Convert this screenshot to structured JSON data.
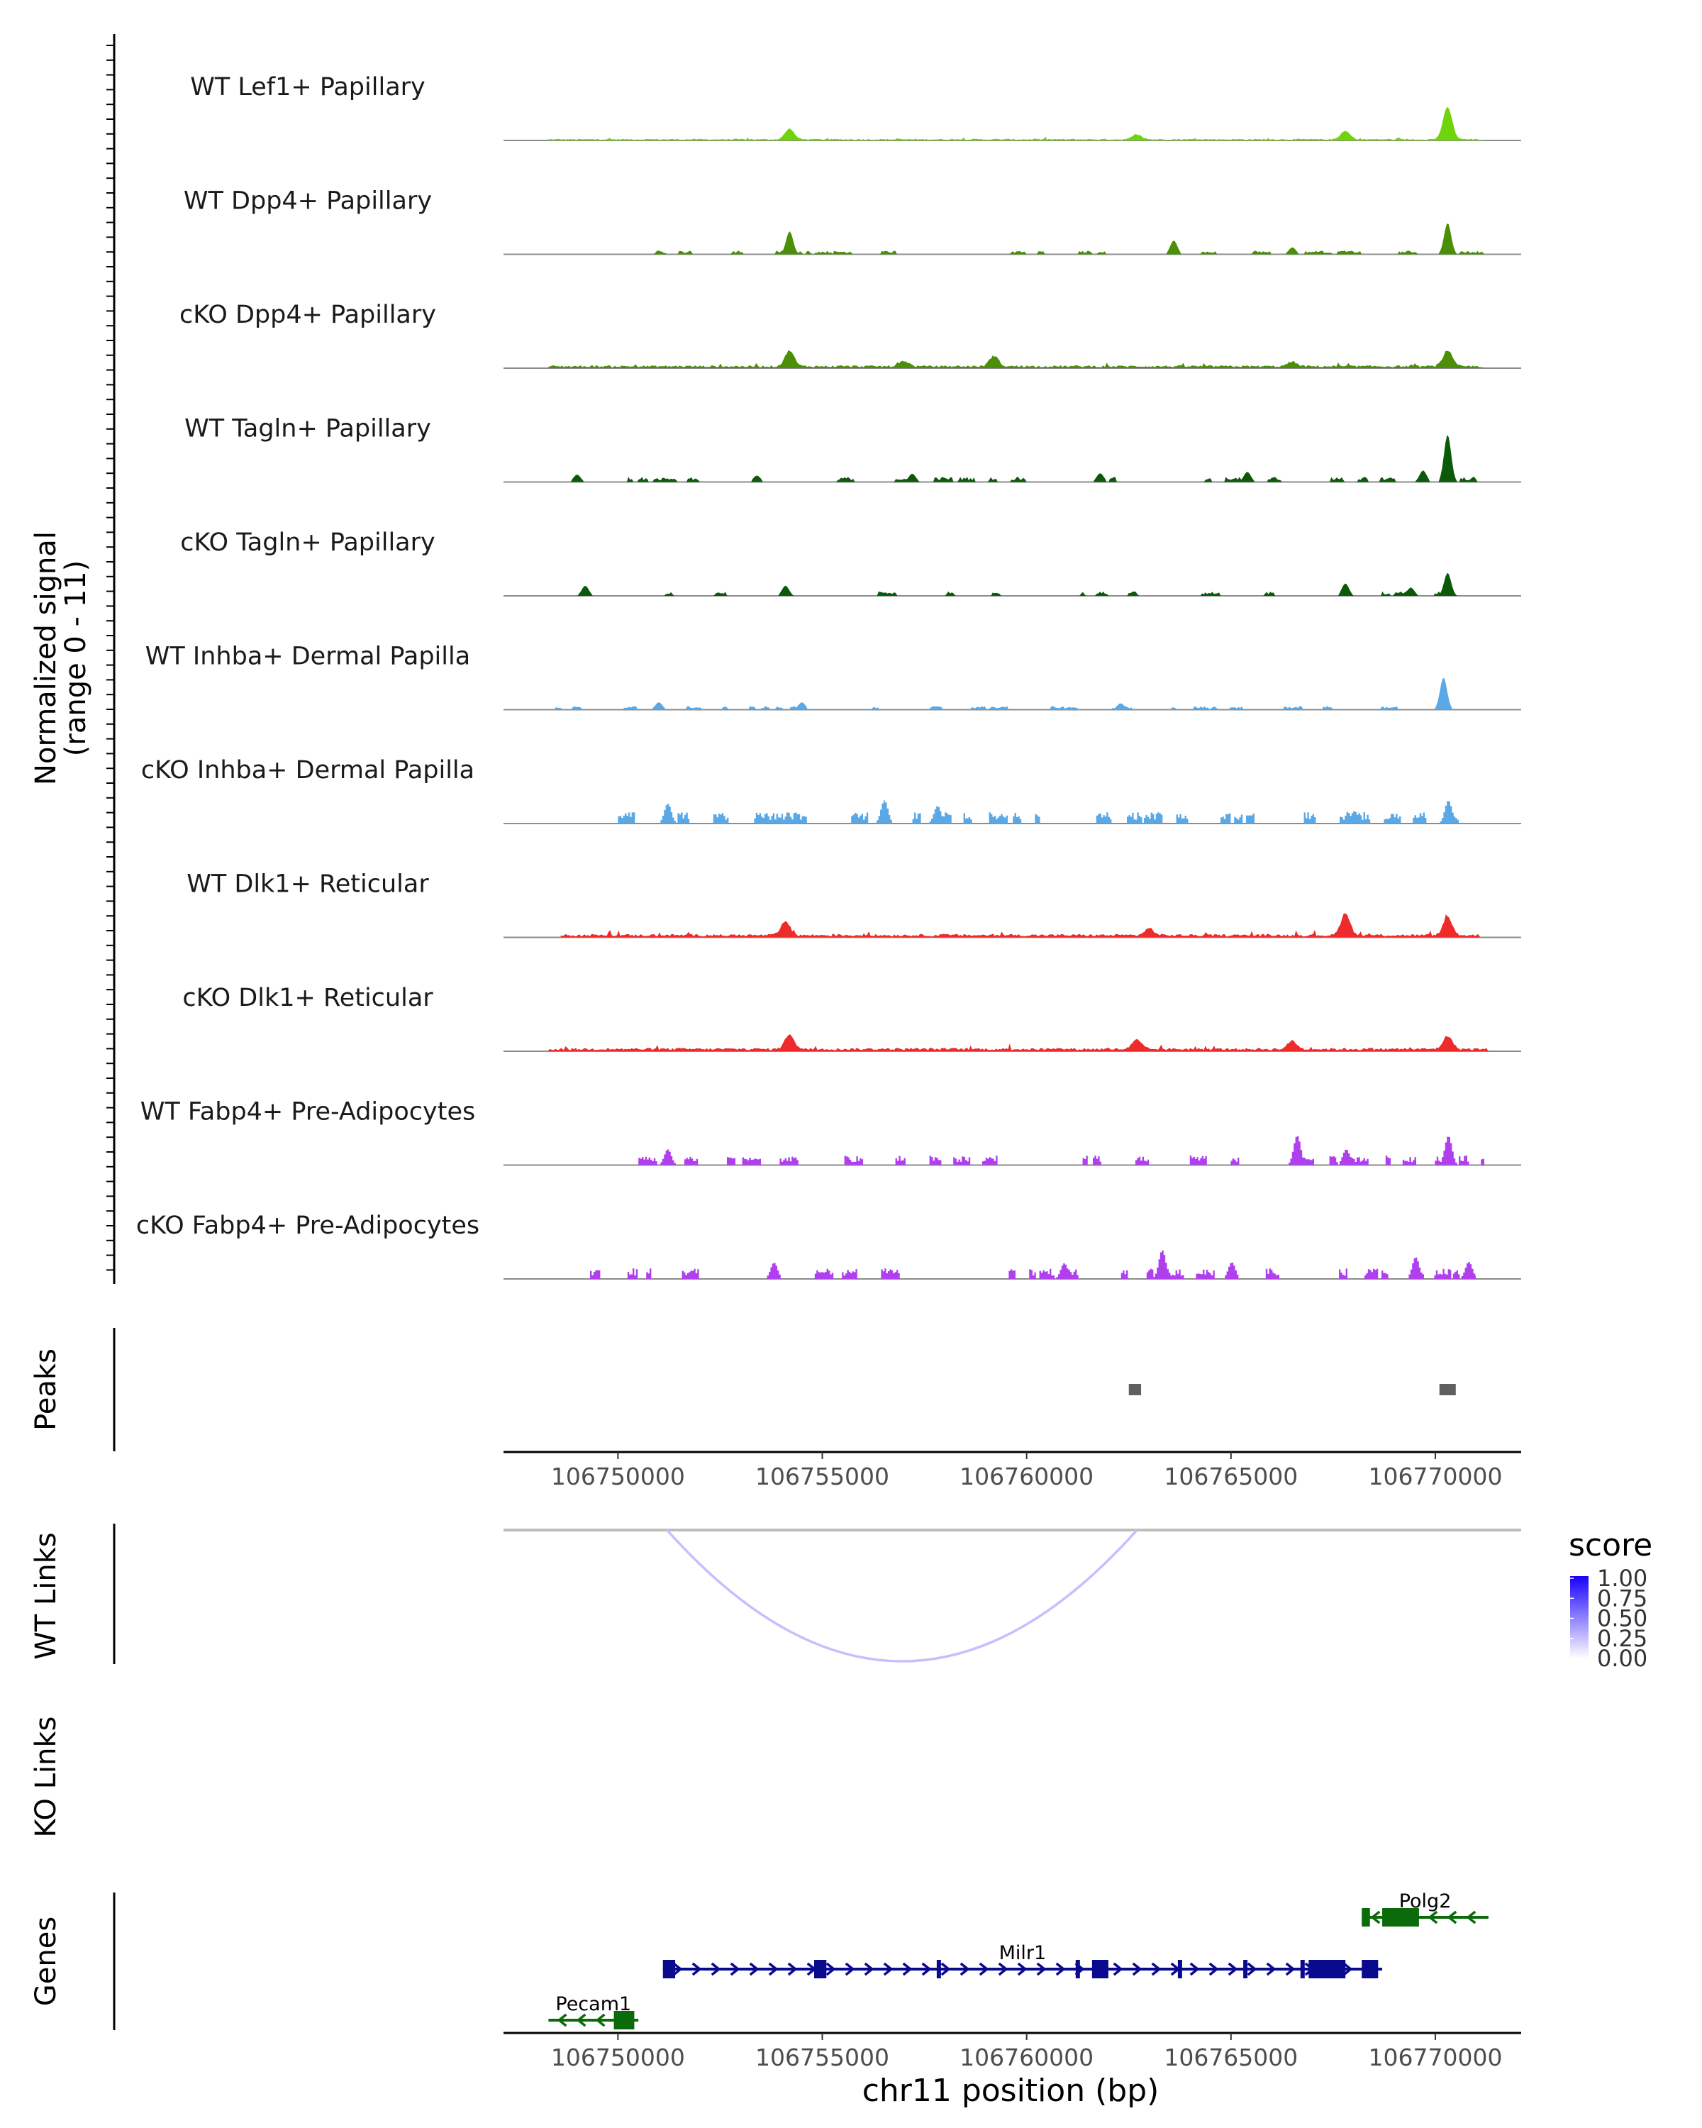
{
  "chart_data": {
    "type": "area",
    "title": "",
    "chromosome": "chr11",
    "xlabel": "chr11 position (bp)",
    "xlim": [
      106747200,
      106772100
    ],
    "xticks": [
      106750000,
      106755000,
      106760000,
      106765000,
      106770000
    ],
    "xtick_labels": [
      "106750000",
      "106755000",
      "106760000",
      "106765000",
      "106770000"
    ],
    "coverage": {
      "ylabel_line1": "Normalized signal",
      "ylabel_line2": "(range 0 - 11)",
      "ylim": [
        0,
        11
      ],
      "tracks": [
        {
          "name": "WT Lef1+ Papillary",
          "color": "#6fd40a",
          "style": "dense",
          "start": 106748300,
          "end": 106771200,
          "base": 0.3,
          "peaks": [
            [
              106754200,
              2.3
            ],
            [
              106762700,
              1.0
            ],
            [
              106767800,
              1.8
            ],
            [
              106770300,
              7.0
            ]
          ]
        },
        {
          "name": "WT Dpp4+ Papillary",
          "color": "#4a8f06",
          "style": "sparse",
          "start": 106750000,
          "end": 106771200,
          "base": 0.5,
          "peaks": [
            [
              106754200,
              5.0
            ],
            [
              106763600,
              3.0
            ],
            [
              106766500,
              1.5
            ],
            [
              106770300,
              6.8
            ]
          ]
        },
        {
          "name": "cKO Dpp4+ Papillary",
          "color": "#4a8f06",
          "style": "dense",
          "start": 106748300,
          "end": 106771200,
          "base": 0.5,
          "peaks": [
            [
              106754200,
              3.5
            ],
            [
              106757000,
              1.2
            ],
            [
              106759200,
              2.3
            ],
            [
              106766500,
              1.0
            ],
            [
              106770300,
              3.5
            ]
          ]
        },
        {
          "name": "WT Tagln+ Papillary",
          "color": "#0a5a0a",
          "style": "sparse",
          "start": 106748800,
          "end": 106771300,
          "base": 0.7,
          "peaks": [
            [
              106749000,
              1.6
            ],
            [
              106753400,
              1.4
            ],
            [
              106757200,
              1.8
            ],
            [
              106761800,
              1.9
            ],
            [
              106765400,
              2.2
            ],
            [
              106769700,
              2.5
            ],
            [
              106770300,
              10.3
            ]
          ]
        },
        {
          "name": "cKO Tagln+ Papillary",
          "color": "#0a5a0a",
          "style": "sparse",
          "start": 106748300,
          "end": 106771200,
          "base": 0.6,
          "peaks": [
            [
              106749200,
              2.2
            ],
            [
              106754100,
              2.2
            ],
            [
              106767800,
              2.7
            ],
            [
              106769400,
              1.8
            ],
            [
              106770300,
              5.0
            ]
          ]
        },
        {
          "name": "WT Inhba+ Dermal Papilla",
          "color": "#5aa8e6",
          "style": "sparse",
          "start": 106748400,
          "end": 106771200,
          "base": 0.5,
          "peaks": [
            [
              106751000,
              1.6
            ],
            [
              106754500,
              1.6
            ],
            [
              106762300,
              1.4
            ],
            [
              106770200,
              7.0
            ]
          ]
        },
        {
          "name": "cKO Inhba+ Dermal Papilla",
          "color": "#5aa8e6",
          "style": "blocky",
          "start": 106749500,
          "end": 106771100,
          "base": 1.2,
          "peaks": [
            [
              106751200,
              4.3
            ],
            [
              106756500,
              5.0
            ],
            [
              106757800,
              3.8
            ],
            [
              106768000,
              2.7
            ],
            [
              106770300,
              5.0
            ]
          ]
        },
        {
          "name": "WT Dlk1+ Reticular",
          "color": "#ee2a2a",
          "style": "dense",
          "start": 106748600,
          "end": 106771100,
          "base": 0.6,
          "peaks": [
            [
              106754100,
              3.0
            ],
            [
              106763000,
              1.5
            ],
            [
              106767800,
              4.9
            ],
            [
              106770300,
              3.9
            ]
          ]
        },
        {
          "name": "cKO Dlk1+ Reticular",
          "color": "#ee2a2a",
          "style": "dense",
          "start": 106748300,
          "end": 106771300,
          "base": 0.6,
          "peaks": [
            [
              106754200,
              3.3
            ],
            [
              106762700,
              2.0
            ],
            [
              106766500,
              1.8
            ],
            [
              106770300,
              2.9
            ]
          ]
        },
        {
          "name": "WT Fabp4+ Pre-Adipocytes",
          "color": "#b040ee",
          "style": "blocky",
          "start": 106750500,
          "end": 106771200,
          "base": 1.0,
          "peaks": [
            [
              106751200,
              3.4
            ],
            [
              106766600,
              6.4
            ],
            [
              106767800,
              3.4
            ],
            [
              106770300,
              6.3
            ]
          ]
        },
        {
          "name": "cKO Fabp4+ Pre-Adipocytes",
          "color": "#b040ee",
          "style": "blocky",
          "start": 106748400,
          "end": 106771000,
          "base": 1.1,
          "peaks": [
            [
              106753800,
              3.5
            ],
            [
              106760900,
              3.4
            ],
            [
              106763300,
              6.2
            ],
            [
              106765000,
              3.6
            ],
            [
              106769500,
              4.7
            ],
            [
              106770800,
              3.7
            ]
          ]
        }
      ]
    },
    "peaks_track": {
      "label": "Peaks",
      "intervals": [
        [
          106762500,
          106762800
        ],
        [
          106770100,
          106770500
        ]
      ]
    },
    "links": {
      "wt_label": "WT Links",
      "ko_label": "KO Links",
      "wt": [
        {
          "start": 106751200,
          "end": 106762700,
          "score": 0.25
        }
      ],
      "ko": []
    },
    "legend": {
      "title": "score",
      "placement": "right",
      "scale": [
        0,
        1
      ],
      "color_low": "#ffffff",
      "color_high": "#1a00ff",
      "breaks": [
        "1.00",
        "0.75",
        "0.50",
        "0.25",
        "0.00"
      ]
    },
    "genes": {
      "label": "Genes",
      "items": [
        {
          "name": "Pecam1",
          "strand": "-",
          "color": "#0b6b0b",
          "row": 2,
          "start": 106748300,
          "end": 106750500,
          "exons": [
            [
              106749900,
              106750400
            ]
          ]
        },
        {
          "name": "Milr1",
          "strand": "+",
          "color": "#0a0a8f",
          "row": 1,
          "start": 106751100,
          "end": 106768700,
          "exons": [
            [
              106751100,
              106751400
            ],
            [
              106754800,
              106755100
            ],
            [
              106757800,
              106757900
            ],
            [
              106761200,
              106761300
            ],
            [
              106761600,
              106762000
            ],
            [
              106763700,
              106763800
            ],
            [
              106765300,
              106765400
            ],
            [
              106766700,
              106766800
            ],
            [
              106766900,
              106767800
            ],
            [
              106768200,
              106768600
            ]
          ]
        },
        {
          "name": "Polg2",
          "strand": "-",
          "color": "#0b6b0b",
          "row": 0,
          "start": 106768200,
          "end": 106771300,
          "exons": [
            [
              106768200,
              106768400
            ],
            [
              106768700,
              106769600
            ]
          ]
        }
      ]
    }
  }
}
